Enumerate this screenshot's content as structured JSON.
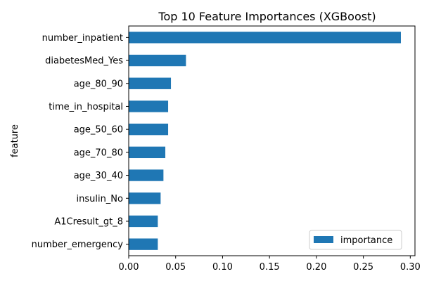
{
  "chart_data": {
    "type": "bar",
    "orientation": "horizontal",
    "title": "Top 10 Feature Importances (XGBoost)",
    "ylabel": "feature",
    "xlabel": "",
    "categories": [
      "number_inpatient",
      "diabetesMed_Yes",
      "age_80_90",
      "time_in_hospital",
      "age_50_60",
      "age_70_80",
      "age_30_40",
      "insulin_No",
      "A1Cresult_gt_8",
      "number_emergency"
    ],
    "series": [
      {
        "name": "importance",
        "values": [
          0.29,
          0.061,
          0.045,
          0.042,
          0.042,
          0.039,
          0.037,
          0.034,
          0.031,
          0.031
        ]
      }
    ],
    "xlim": [
      0,
      0.305
    ],
    "xticks": [
      "0.00",
      "0.05",
      "0.10",
      "0.15",
      "0.20",
      "0.25",
      "0.30"
    ],
    "xtick_values": [
      0,
      0.05,
      0.1,
      0.15,
      0.2,
      0.25,
      0.3
    ],
    "legend_position": "bottom-right",
    "grid": false,
    "bar_color": "#1f77b4"
  }
}
